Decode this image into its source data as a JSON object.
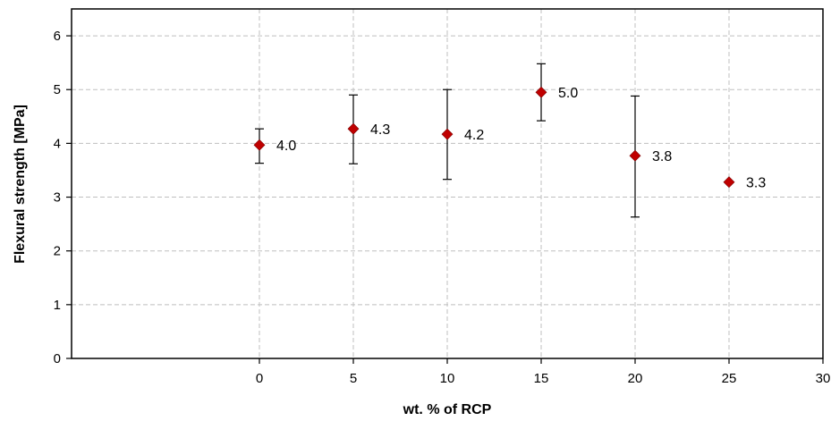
{
  "chart_data": {
    "type": "scatter",
    "title": "",
    "xlabel": "wt. % of RCP",
    "ylabel": "Flexural strength [MPa]",
    "xlim": [
      -10,
      30
    ],
    "ylim": [
      0,
      6.5
    ],
    "x_ticks": [
      0,
      5,
      10,
      15,
      20,
      25,
      30
    ],
    "y_ticks": [
      0,
      1,
      2,
      3,
      4,
      5,
      6
    ],
    "grid": true,
    "legend": "none",
    "marker": "diamond",
    "marker_color": "#c00000",
    "series": [
      {
        "points": [
          {
            "x": 0,
            "y": 3.97,
            "err_low": 3.63,
            "err_high": 4.27,
            "label": "4.0"
          },
          {
            "x": 5,
            "y": 4.27,
            "err_low": 3.62,
            "err_high": 4.9,
            "label": "4.3"
          },
          {
            "x": 10,
            "y": 4.17,
            "err_low": 3.33,
            "err_high": 5.0,
            "label": "4.2"
          },
          {
            "x": 15,
            "y": 4.95,
            "err_low": 4.42,
            "err_high": 5.48,
            "label": "5.0"
          },
          {
            "x": 20,
            "y": 3.77,
            "err_low": 2.63,
            "err_high": 4.88,
            "label": "3.8"
          },
          {
            "x": 25,
            "y": 3.28,
            "err_low": null,
            "err_high": null,
            "label": "3.3"
          }
        ]
      }
    ]
  }
}
